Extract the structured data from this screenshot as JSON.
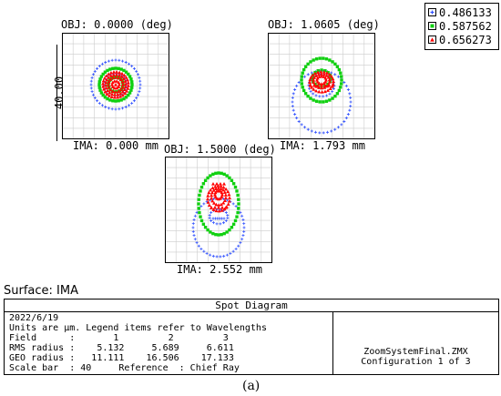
{
  "legend": {
    "items": [
      {
        "label": "0.486133",
        "color": "#3050ff",
        "marker": "plus"
      },
      {
        "label": "0.587562",
        "color": "#10d010",
        "marker": "square"
      },
      {
        "label": "0.656273",
        "color": "#ff0000",
        "marker": "triangle"
      }
    ]
  },
  "plots": [
    {
      "obj_label": "OBJ: 0.0000 (deg)",
      "ima_label": "IMA: 0.000 mm",
      "scale_label": "40.00"
    },
    {
      "obj_label": "OBJ: 1.0605 (deg)",
      "ima_label": "IMA: 1.793 mm"
    },
    {
      "obj_label": "OBJ: 1.5000 (deg)",
      "ima_label": "IMA: 2.552 mm"
    }
  ],
  "surface_label": "Surface: IMA",
  "panel": {
    "title": "Spot Diagram",
    "date": "2022/6/19",
    "units_note": "Units are μm. Legend items refer to Wavelengths",
    "field_row": "Field      :       1         2         3",
    "rms_row": "RMS radius :    5.132     5.689     6.611",
    "geo_row": "GEO radius :   11.111    16.506    17.133",
    "scale_row": "Scale bar  : 40     Reference  : Chief Ray",
    "filename": "ZoomSystemFinal.ZMX",
    "configuration": "Configuration 1 of 3"
  },
  "caption": "(a)"
}
